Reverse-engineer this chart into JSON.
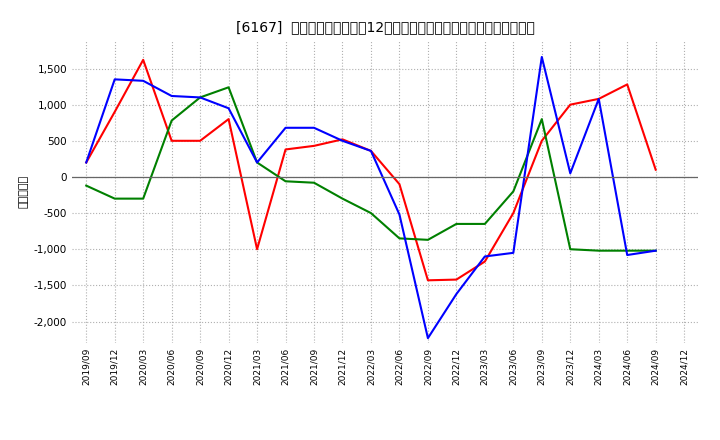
{
  "title": "[6167]  キャッシュフローの12か月移動合計の対前年同期増減額の推移",
  "ylabel": "（百万円）",
  "background_color": "#ffffff",
  "plot_bg_color": "#ffffff",
  "grid_color": "#b0b0b0",
  "x_labels": [
    "2019/09",
    "2019/12",
    "2020/03",
    "2020/06",
    "2020/09",
    "2020/12",
    "2021/03",
    "2021/06",
    "2021/09",
    "2021/12",
    "2022/03",
    "2022/06",
    "2022/09",
    "2022/12",
    "2023/03",
    "2023/06",
    "2023/09",
    "2023/12",
    "2024/03",
    "2024/06",
    "2024/09",
    "2024/12"
  ],
  "operating_cf": [
    200,
    900,
    1620,
    500,
    500,
    800,
    -1000,
    380,
    430,
    520,
    360,
    -100,
    -1430,
    -1420,
    -1170,
    -500,
    500,
    1000,
    1080,
    1280,
    100,
    null
  ],
  "investing_cf": [
    -120,
    -300,
    -300,
    780,
    1100,
    1240,
    200,
    -60,
    -80,
    -300,
    -500,
    -850,
    -870,
    -650,
    -650,
    -200,
    800,
    -1000,
    -1020,
    -1020,
    -1020,
    null
  ],
  "free_cf": [
    200,
    1350,
    1330,
    1120,
    1100,
    950,
    200,
    680,
    680,
    500,
    360,
    -520,
    -2230,
    -1620,
    -1100,
    -1050,
    1660,
    50,
    1080,
    -1080,
    -1020,
    null
  ],
  "ylim": [
    -2300,
    1900
  ],
  "yticks": [
    -2000,
    -1500,
    -1000,
    -500,
    0,
    500,
    1000,
    1500
  ],
  "line_colors": {
    "operating": "#ff0000",
    "investing": "#008000",
    "free": "#0000ff"
  }
}
